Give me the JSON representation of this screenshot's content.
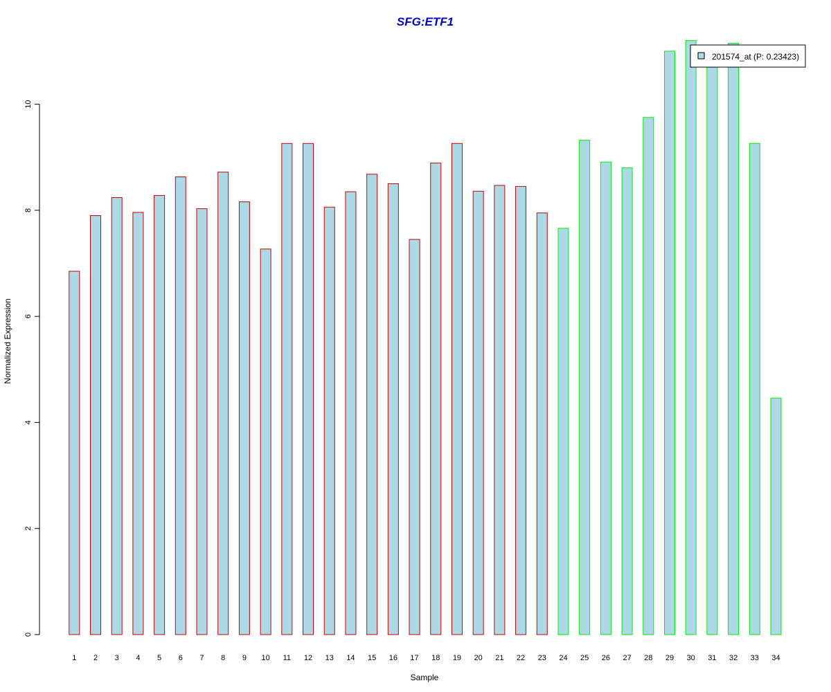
{
  "chart_data": {
    "type": "bar",
    "title": "SFG:ETF1",
    "xlabel": "Sample",
    "ylabel": "Normalized Expression",
    "categories": [
      "1",
      "2",
      "3",
      "4",
      "5",
      "6",
      "7",
      "8",
      "9",
      "10",
      "11",
      "12",
      "13",
      "14",
      "15",
      "16",
      "17",
      "18",
      "19",
      "20",
      "21",
      "22",
      "23",
      "24",
      "25",
      "26",
      "27",
      "28",
      "29",
      "30",
      "31",
      "32",
      "33",
      "34"
    ],
    "series": [
      {
        "name": "201574_at (P: 0.23423)",
        "values": [
          6.85,
          7.9,
          8.24,
          7.96,
          8.28,
          8.63,
          8.03,
          8.72,
          8.16,
          7.27,
          9.26,
          9.26,
          8.06,
          8.35,
          8.68,
          8.5,
          7.45,
          8.89,
          9.26,
          8.36,
          8.47,
          8.45,
          7.95,
          7.66,
          9.32,
          8.91,
          8.8,
          9.75,
          11.0,
          11.2,
          10.8,
          11.15,
          9.26,
          4.46
        ]
      }
    ],
    "groups": [
      {
        "from": 1,
        "to": 23,
        "border_color": "#cc0000"
      },
      {
        "from": 24,
        "to": 34,
        "border_color": "#00ee00"
      }
    ],
    "ylim": [
      0,
      11.2
    ],
    "yticks": [
      0,
      2,
      4,
      6,
      8,
      10
    ],
    "grid": false,
    "legend_position": "top-right",
    "colors": {
      "bar_fill": "#add8e6",
      "title": "#0000cc"
    }
  }
}
